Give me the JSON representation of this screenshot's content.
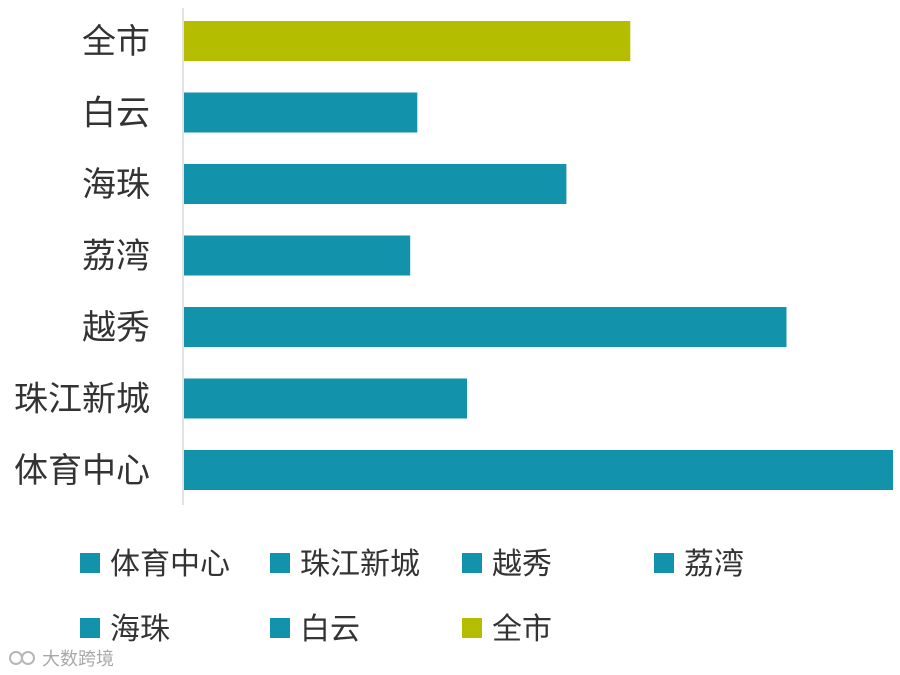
{
  "chart_data": {
    "type": "bar",
    "orientation": "horizontal",
    "categories": [
      "全市",
      "白云",
      "海珠",
      "荔湾",
      "越秀",
      "珠江新城",
      "体育中心"
    ],
    "values": [
      63,
      33,
      54,
      32,
      85,
      40,
      100
    ],
    "colors": [
      "#b5bd00",
      "#1392ac",
      "#1392ac",
      "#1392ac",
      "#1392ac",
      "#1392ac",
      "#1392ac"
    ],
    "xlim": [
      0,
      100
    ],
    "grid": false,
    "legend": {
      "position": "bottom",
      "entries": [
        {
          "label": "体育中心",
          "color": "#1392ac"
        },
        {
          "label": "珠江新城",
          "color": "#1392ac"
        },
        {
          "label": "越秀",
          "color": "#1392ac"
        },
        {
          "label": "荔湾",
          "color": "#1392ac"
        },
        {
          "label": "海珠",
          "color": "#1392ac"
        },
        {
          "label": "白云",
          "color": "#1392ac"
        },
        {
          "label": "全市",
          "color": "#b5bd00"
        }
      ]
    }
  },
  "watermark": {
    "text": "大数跨境"
  }
}
